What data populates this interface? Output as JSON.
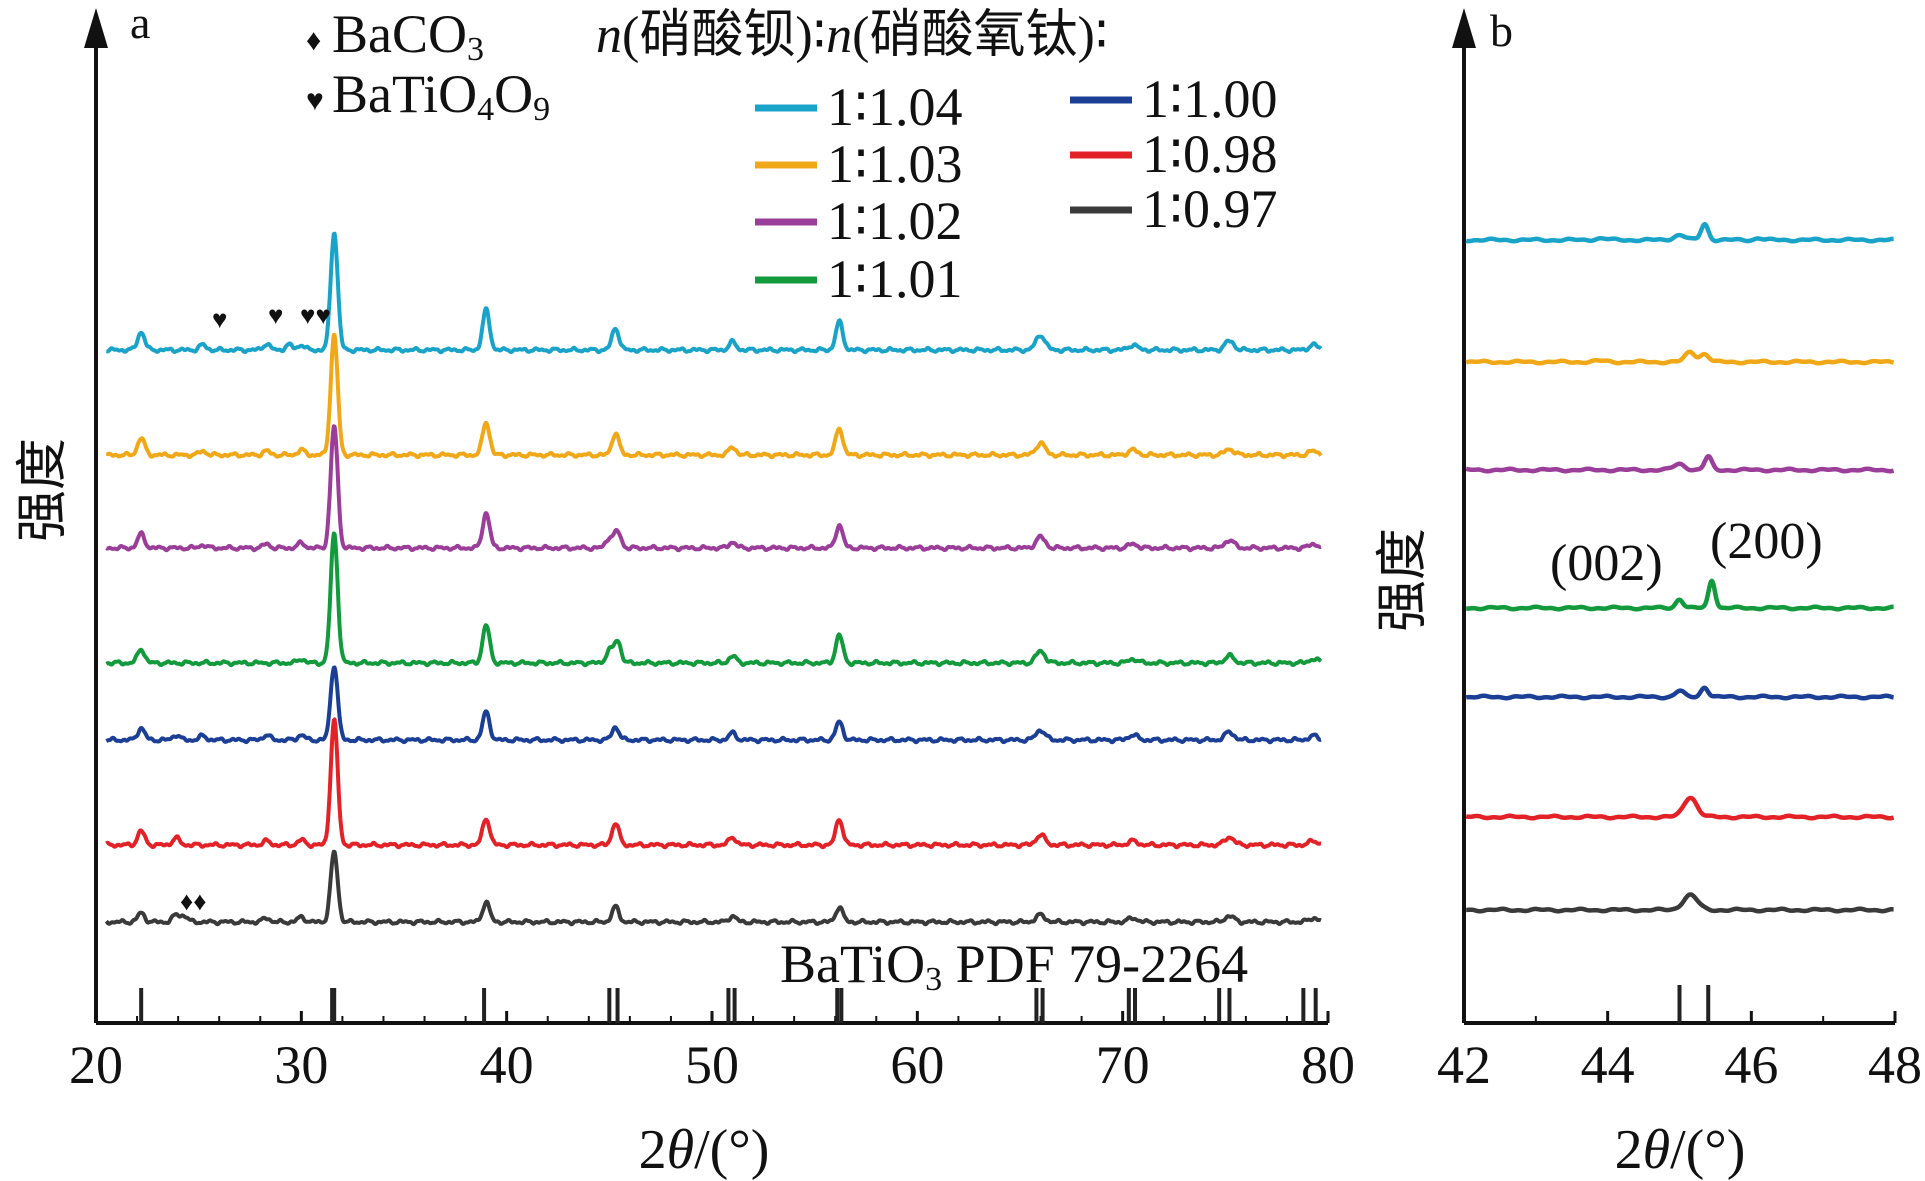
{
  "chart_data": [
    {
      "panel": "a",
      "type": "line",
      "xlabel_parts": [
        "2",
        "θ",
        "/(°)"
      ],
      "ylabel": "强度",
      "xlim": [
        20,
        80
      ],
      "xticks": [
        "20",
        "30",
        "40",
        "50",
        "60",
        "70",
        "80"
      ],
      "legend_title": {
        "n1": "n",
        "p1": "(硝酸钡)∶",
        "n2": "n",
        "p2": "(硝酸氧钛)∶"
      },
      "phase_legend": [
        {
          "marker": "♦",
          "base": "BaCO",
          "sub": "3"
        },
        {
          "marker": "♥",
          "base": "BaTi",
          "sub1": "O",
          "sub1b": "4",
          "mid": "O",
          "sub2": "9"
        }
      ],
      "series": [
        {
          "name": "1∶1.04",
          "color": "#1aa3c8",
          "peaks": [
            [
              22.2,
              18
            ],
            [
              25.2,
              5
            ],
            [
              28.3,
              6
            ],
            [
              29.4,
              5
            ],
            [
              30.0,
              5
            ],
            [
              31.6,
              118
            ],
            [
              39.0,
              40
            ],
            [
              45.3,
              22
            ],
            [
              51.0,
              8
            ],
            [
              56.2,
              28
            ],
            [
              66.0,
              15
            ],
            [
              70.5,
              5
            ],
            [
              75.2,
              9
            ],
            [
              79.3,
              5
            ]
          ]
        },
        {
          "name": "1∶1.03",
          "color": "#f0a818",
          "peaks": [
            [
              22.2,
              17
            ],
            [
              25.2,
              4
            ],
            [
              28.3,
              4
            ],
            [
              30.0,
              5
            ],
            [
              31.6,
              120
            ],
            [
              39.0,
              33
            ],
            [
              45.3,
              22
            ],
            [
              51.0,
              8
            ],
            [
              56.2,
              27
            ],
            [
              66.0,
              12
            ],
            [
              70.5,
              5
            ],
            [
              75.2,
              6
            ],
            [
              79.3,
              4
            ]
          ]
        },
        {
          "name": "1∶1.02",
          "color": "#9a3e9a",
          "peaks": [
            [
              22.2,
              14
            ],
            [
              25.2,
              3
            ],
            [
              28.3,
              4
            ],
            [
              30.0,
              5
            ],
            [
              31.6,
              122
            ],
            [
              39.0,
              35
            ],
            [
              45.0,
              10
            ],
            [
              45.4,
              16
            ],
            [
              51.0,
              6
            ],
            [
              56.2,
              23
            ],
            [
              66.0,
              11
            ],
            [
              70.5,
              4
            ],
            [
              75.2,
              8
            ],
            [
              79.3,
              4
            ]
          ]
        },
        {
          "name": "1∶1.01",
          "color": "#129a3c",
          "peaks": [
            [
              22.2,
              14
            ],
            [
              30.0,
              4
            ],
            [
              31.6,
              130
            ],
            [
              39.0,
              38
            ],
            [
              45.0,
              12
            ],
            [
              45.4,
              22
            ],
            [
              51.0,
              7
            ],
            [
              56.2,
              28
            ],
            [
              66.0,
              12
            ],
            [
              70.5,
              4
            ],
            [
              75.2,
              7
            ],
            [
              79.3,
              4
            ]
          ]
        },
        {
          "name": "1∶1.00",
          "color": "#1c3f96",
          "peaks": [
            [
              22.2,
              12
            ],
            [
              23.9,
              5
            ],
            [
              25.2,
              4
            ],
            [
              28.3,
              5
            ],
            [
              30.0,
              5
            ],
            [
              31.6,
              75
            ],
            [
              39.0,
              28
            ],
            [
              45.3,
              13
            ],
            [
              51.0,
              7
            ],
            [
              56.2,
              18
            ],
            [
              66.0,
              10
            ],
            [
              70.5,
              5
            ],
            [
              75.2,
              8
            ],
            [
              79.3,
              4
            ]
          ]
        },
        {
          "name": "1∶0.98",
          "color": "#e32228",
          "peaks": [
            [
              22.2,
              14
            ],
            [
              23.9,
              7
            ],
            [
              28.3,
              4
            ],
            [
              30.0,
              5
            ],
            [
              31.6,
              125
            ],
            [
              39.0,
              27
            ],
            [
              45.3,
              22
            ],
            [
              51.0,
              8
            ],
            [
              56.2,
              26
            ],
            [
              66.0,
              10
            ],
            [
              70.5,
              4
            ],
            [
              75.2,
              8
            ],
            [
              79.3,
              4
            ]
          ]
        },
        {
          "name": "1∶0.97",
          "color": "#3a3a3a",
          "peaks": [
            [
              22.2,
              9
            ],
            [
              23.9,
              7
            ],
            [
              24.3,
              6
            ],
            [
              28.3,
              4
            ],
            [
              30.0,
              5
            ],
            [
              31.6,
              70
            ],
            [
              39.0,
              20
            ],
            [
              45.3,
              15
            ],
            [
              51.0,
              6
            ],
            [
              56.2,
              15
            ],
            [
              66.0,
              7
            ],
            [
              70.5,
              4
            ],
            [
              75.2,
              6
            ],
            [
              79.3,
              4
            ]
          ]
        }
      ],
      "reference": {
        "label_base": "BaTiO",
        "label_sub": "3",
        "label_rest": " PDF 79-2264",
        "lines": [
          22.2,
          31.5,
          31.6,
          38.9,
          45.0,
          45.4,
          50.8,
          51.1,
          56.1,
          56.3,
          65.8,
          66.1,
          70.3,
          70.6,
          74.7,
          75.2,
          78.8,
          79.4
        ]
      },
      "annotations": [
        {
          "marker": "♥",
          "x": 25.2,
          "series": "1∶1.04"
        },
        {
          "marker": "♥",
          "x": 28.3,
          "series": "1∶1.04"
        },
        {
          "marker": "♥♥",
          "x": 30.0,
          "series": "1∶1.04"
        },
        {
          "marker": "♦♦",
          "x": 24.0,
          "series": "1∶0.97"
        }
      ]
    },
    {
      "panel": "b",
      "type": "line",
      "xlabel_parts": [
        "2",
        "θ",
        "/(°)"
      ],
      "ylabel": "强度",
      "xlim": [
        42,
        48
      ],
      "xticks": [
        "42",
        "44",
        "46",
        "48"
      ],
      "peak_labels": [
        "(002)",
        "(200)"
      ],
      "reference_lines": [
        45.0,
        45.4
      ],
      "series": [
        {
          "name": "1∶1.04",
          "color": "#1aa3c8",
          "peaks": [
            [
              43.9,
              0.09,
              1.5
            ],
            [
              45.0,
              0.08,
              5
            ],
            [
              45.35,
              0.05,
              16
            ],
            [
              46.1,
              0.05,
              2
            ]
          ]
        },
        {
          "name": "1∶1.03",
          "color": "#f0a818",
          "peaks": [
            [
              43.9,
              0.1,
              1
            ],
            [
              45.15,
              0.07,
              10
            ],
            [
              45.35,
              0.06,
              8
            ]
          ]
        },
        {
          "name": "1∶1.02",
          "color": "#9a3e9a",
          "peaks": [
            [
              45.0,
              0.08,
              6
            ],
            [
              45.4,
              0.05,
              13
            ]
          ]
        },
        {
          "name": "1∶1.01",
          "color": "#129a3c",
          "peaks": [
            [
              45.0,
              0.05,
              9
            ],
            [
              45.45,
              0.045,
              28
            ]
          ]
        },
        {
          "name": "1∶1.00",
          "color": "#1c3f96",
          "peaks": [
            [
              45.0,
              0.06,
              6
            ],
            [
              45.35,
              0.05,
              10
            ]
          ]
        },
        {
          "name": "1∶0.98",
          "color": "#e32228",
          "peaks": [
            [
              45.15,
              0.09,
              20
            ]
          ]
        },
        {
          "name": "1∶0.97",
          "color": "#3a3a3a",
          "peaks": [
            [
              45.15,
              0.1,
              15
            ]
          ]
        }
      ]
    }
  ]
}
